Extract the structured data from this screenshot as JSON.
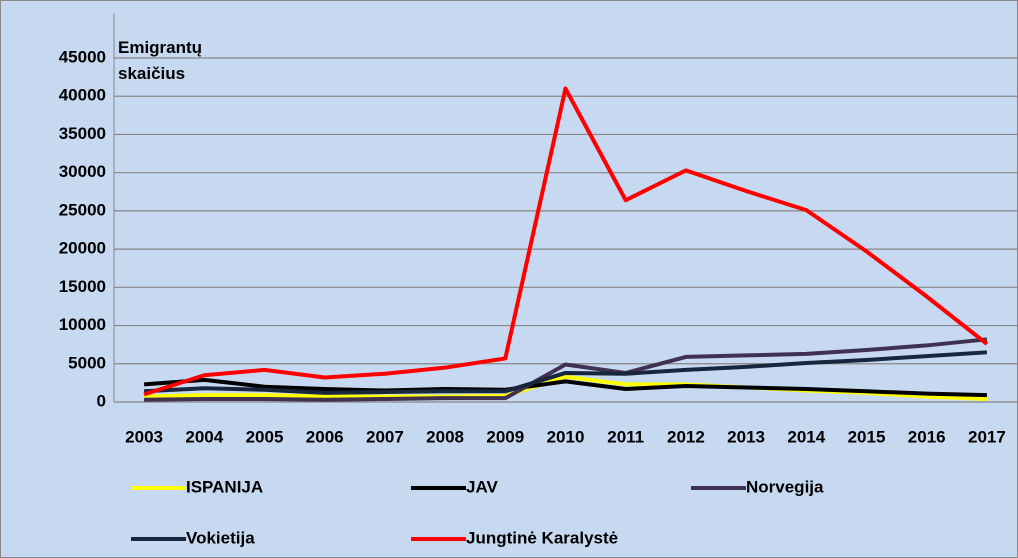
{
  "chart_data": {
    "type": "line",
    "ylabel": "Emigrantų skaičius",
    "categories": [
      "2003",
      "2004",
      "2005",
      "2006",
      "2007",
      "2008",
      "2009",
      "2010",
      "2011",
      "2012",
      "2013",
      "2014",
      "2015",
      "2016",
      "2017"
    ],
    "ylim": [
      0,
      45000
    ],
    "yticks": [
      0,
      5000,
      10000,
      15000,
      20000,
      25000,
      30000,
      35000,
      40000,
      45000
    ],
    "grid": true,
    "legend": "bottom",
    "series": [
      {
        "name": "ISPANIJA",
        "color": "#ffff00",
        "values": [
          700,
          900,
          900,
          700,
          700,
          700,
          800,
          3300,
          2300,
          2300,
          1900,
          1500,
          1200,
          700,
          400
        ]
      },
      {
        "name": "JAV",
        "color": "#000000",
        "values": [
          2300,
          2900,
          2000,
          1700,
          1500,
          1700,
          1600,
          2700,
          1700,
          2100,
          1900,
          1700,
          1400,
          1100,
          900
        ]
      },
      {
        "name": "Norvegija",
        "color": "#403152",
        "values": [
          300,
          400,
          400,
          300,
          400,
          500,
          500,
          4900,
          3800,
          5900,
          6100,
          6300,
          6800,
          7400,
          8200
        ]
      },
      {
        "name": "Vokietija",
        "color": "#17253d",
        "values": [
          1400,
          1800,
          1600,
          1200,
          1300,
          1400,
          1400,
          3800,
          3700,
          4200,
          4600,
          5100,
          5500,
          6000,
          6500
        ]
      },
      {
        "name": "Jungtinė Karalystė",
        "color": "#ff0000",
        "values": [
          1000,
          3500,
          4200,
          3200,
          3700,
          4500,
          5700,
          41000,
          26400,
          30300,
          27600,
          25100,
          19700,
          13800,
          7600
        ]
      }
    ]
  }
}
